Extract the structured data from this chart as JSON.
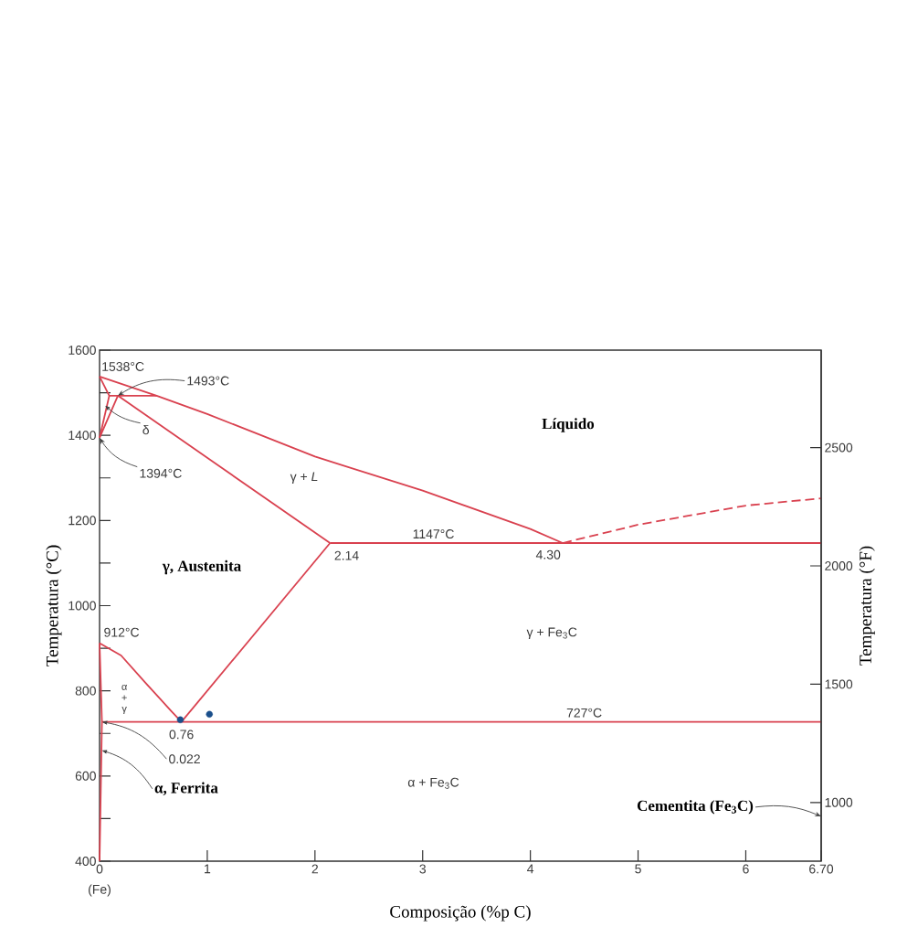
{
  "chart_data": {
    "type": "line",
    "xlabel": "Composição (%p C)",
    "ylabel": "Temperatura (°C)",
    "y2label": "Temperatura (°F)",
    "xlim": [
      0,
      6.7
    ],
    "xticks": [
      0,
      1,
      2,
      3,
      4,
      5,
      6,
      {
        "value": 6.7,
        "label": "6.70"
      }
    ],
    "ylim": [
      400,
      1600
    ],
    "yticks": [
      400,
      {
        "value": 500,
        "label": null
      },
      600,
      {
        "value": 700,
        "label": null
      },
      800,
      {
        "value": 900,
        "label": null
      },
      1000,
      {
        "value": 1100,
        "label": null
      },
      1200,
      {
        "value": 1300,
        "label": null
      },
      1400,
      {
        "value": 1500,
        "label": null
      },
      1600
    ],
    "y2lim": [
      752,
      2912
    ],
    "y2ticks": [
      1000,
      1500,
      2000,
      2500
    ],
    "series": [
      {
        "color": "#d9414f",
        "x": [
          0,
          0.53,
          1,
          2,
          3,
          4,
          4.3
        ],
        "values": [
          1538,
          1493,
          1450,
          1350,
          1270,
          1180,
          1147
        ]
      },
      {
        "color": "#d9414f",
        "x": [
          0,
          0.09,
          0
        ],
        "values": [
          1538,
          1493,
          1394
        ]
      },
      {
        "color": "#d9414f",
        "x": [
          0.09,
          0.53
        ],
        "values": [
          1493,
          1493
        ]
      },
      {
        "color": "#d9414f",
        "x": [
          0,
          0.17,
          2.14
        ],
        "values": [
          1394,
          1493,
          1147
        ]
      },
      {
        "color": "#d9414f",
        "x": [
          2.14,
          6.7
        ],
        "values": [
          1147,
          1147
        ]
      },
      {
        "color": "#d9414f",
        "x": [
          2.14,
          0.76
        ],
        "values": [
          1147,
          727
        ]
      },
      {
        "color": "#d9414f",
        "x": [
          0,
          0.2,
          0.43,
          0.66,
          0.76
        ],
        "values": [
          912,
          883,
          818,
          754,
          727
        ]
      },
      {
        "color": "#d9414f",
        "x": [
          0.022,
          6.7
        ],
        "values": [
          727,
          727
        ]
      },
      {
        "color": "#d9414f",
        "x": [
          0,
          0.022,
          0
        ],
        "values": [
          912,
          727,
          400
        ]
      },
      {
        "color": "#d9414f",
        "line_style": "dashed",
        "x": [
          4.3,
          5,
          6,
          6.7
        ],
        "values": [
          1147,
          1190,
          1235,
          1252
        ]
      },
      {
        "type": "scatter",
        "color": "#1a4f8b",
        "x": [
          0.75,
          1.02
        ],
        "values": [
          732,
          745
        ]
      }
    ],
    "annotations": [
      {
        "text": "1538°C",
        "x": 0,
        "y": 1538
      },
      {
        "text": "1493°C",
        "x": 0.17,
        "y": 1493
      },
      {
        "text": "δ",
        "x": 0.05,
        "y": 1470
      },
      {
        "text": "1394°C",
        "x": 0,
        "y": 1394
      },
      "γ + *L*",
      "Líquido",
      "γ, Austenita",
      {
        "text": "2.14",
        "x": 2.14,
        "y": 1147
      },
      {
        "text": "1147°C",
        "x": 3.1,
        "y": 1147
      },
      {
        "text": "4.30",
        "x": 4.3,
        "y": 1147
      },
      {
        "text": "912°C",
        "x": 0,
        "y": 912
      },
      "γ + Fe$_{3}$C",
      "α + γ",
      {
        "text": "0.76",
        "x": 0.76,
        "y": 727
      },
      {
        "text": "727°C",
        "x": 4.5,
        "y": 727
      },
      {
        "text": "0.022",
        "x": 0.022,
        "y": 727
      },
      {
        "text": "α, Ferrita",
        "x": 0.02,
        "y": 660
      },
      "α + Fe$_{3}$C",
      "Cementita (Fe$_{3}$C)",
      {
        "text": "(Fe)",
        "x": 0,
        "y": 400
      }
    ]
  }
}
